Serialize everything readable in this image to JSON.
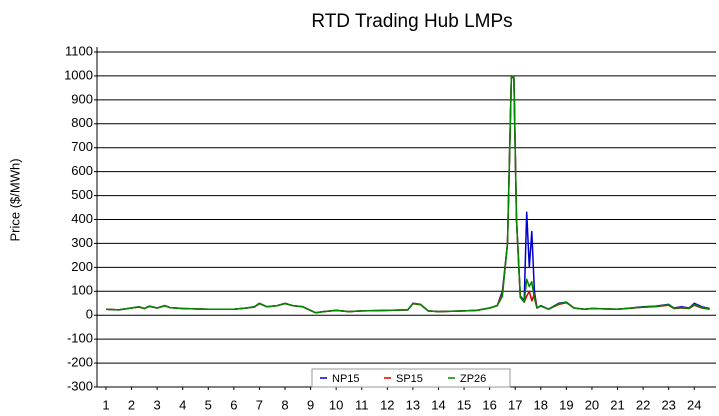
{
  "chart_data": {
    "type": "line",
    "title": "RTD Trading Hub LMPs",
    "y_label": "Price ($/MWh)",
    "x": [
      1,
      1.5,
      2,
      2.3,
      2.5,
      2.7,
      3,
      3.3,
      3.5,
      4,
      5,
      6,
      6.5,
      6.8,
      7,
      7.3,
      7.7,
      8,
      8.3,
      8.7,
      9,
      9.2,
      9.5,
      10,
      10.5,
      11,
      12,
      12.8,
      13,
      13.3,
      13.6,
      14,
      15,
      15.5,
      16,
      16.3,
      16.5,
      16.7,
      16.85,
      16.95,
      17.05,
      17.2,
      17.35,
      17.45,
      17.55,
      17.65,
      17.75,
      17.85,
      18,
      18.3,
      18.7,
      19,
      19.3,
      19.7,
      20,
      21,
      22,
      22.5,
      23,
      23.2,
      23.5,
      23.8,
      24,
      24.3,
      24.6
    ],
    "series": [
      {
        "name": "NP15",
        "color": "#0000cc",
        "values": [
          25,
          22,
          30,
          35,
          28,
          38,
          30,
          40,
          32,
          28,
          25,
          25,
          30,
          35,
          50,
          35,
          40,
          50,
          40,
          35,
          20,
          10,
          15,
          20,
          15,
          18,
          20,
          22,
          50,
          45,
          18,
          15,
          18,
          20,
          30,
          40,
          100,
          300,
          1000,
          990,
          400,
          80,
          60,
          430,
          200,
          350,
          100,
          30,
          40,
          25,
          50,
          55,
          30,
          25,
          28,
          25,
          35,
          38,
          45,
          30,
          35,
          30,
          50,
          35,
          28
        ]
      },
      {
        "name": "SP15",
        "color": "#dd0000",
        "values": [
          25,
          22,
          30,
          34,
          28,
          37,
          30,
          39,
          32,
          28,
          25,
          25,
          30,
          34,
          48,
          35,
          40,
          48,
          40,
          35,
          20,
          10,
          15,
          20,
          15,
          18,
          20,
          22,
          48,
          44,
          18,
          15,
          18,
          20,
          30,
          40,
          90,
          300,
          1000,
          990,
          400,
          75,
          55,
          80,
          100,
          60,
          90,
          30,
          38,
          25,
          45,
          52,
          30,
          25,
          28,
          25,
          33,
          36,
          42,
          28,
          30,
          28,
          42,
          30,
          25
        ]
      },
      {
        "name": "ZP26",
        "color": "#008800",
        "values": [
          25,
          22,
          30,
          35,
          28,
          37,
          30,
          40,
          32,
          28,
          25,
          25,
          30,
          35,
          49,
          35,
          40,
          49,
          40,
          35,
          20,
          10,
          15,
          20,
          15,
          18,
          20,
          22,
          49,
          45,
          18,
          15,
          18,
          20,
          30,
          40,
          80,
          300,
          1000,
          995,
          400,
          75,
          55,
          150,
          120,
          140,
          70,
          30,
          38,
          25,
          48,
          54,
          30,
          25,
          28,
          25,
          34,
          37,
          44,
          29,
          32,
          29,
          45,
          32,
          26
        ]
      }
    ],
    "xlim": [
      0.65,
      24.85
    ],
    "xticks": [
      1,
      2,
      3,
      4,
      5,
      6,
      7,
      8,
      9,
      10,
      11,
      12,
      13,
      14,
      15,
      16,
      17,
      18,
      19,
      20,
      21,
      22,
      23,
      24
    ],
    "ylim": [
      -300,
      1100
    ],
    "yticks": [
      -300,
      -200,
      -100,
      0,
      100,
      200,
      300,
      400,
      500,
      600,
      700,
      800,
      900,
      1000,
      1100
    ],
    "grid": true,
    "legend": "bottom"
  }
}
